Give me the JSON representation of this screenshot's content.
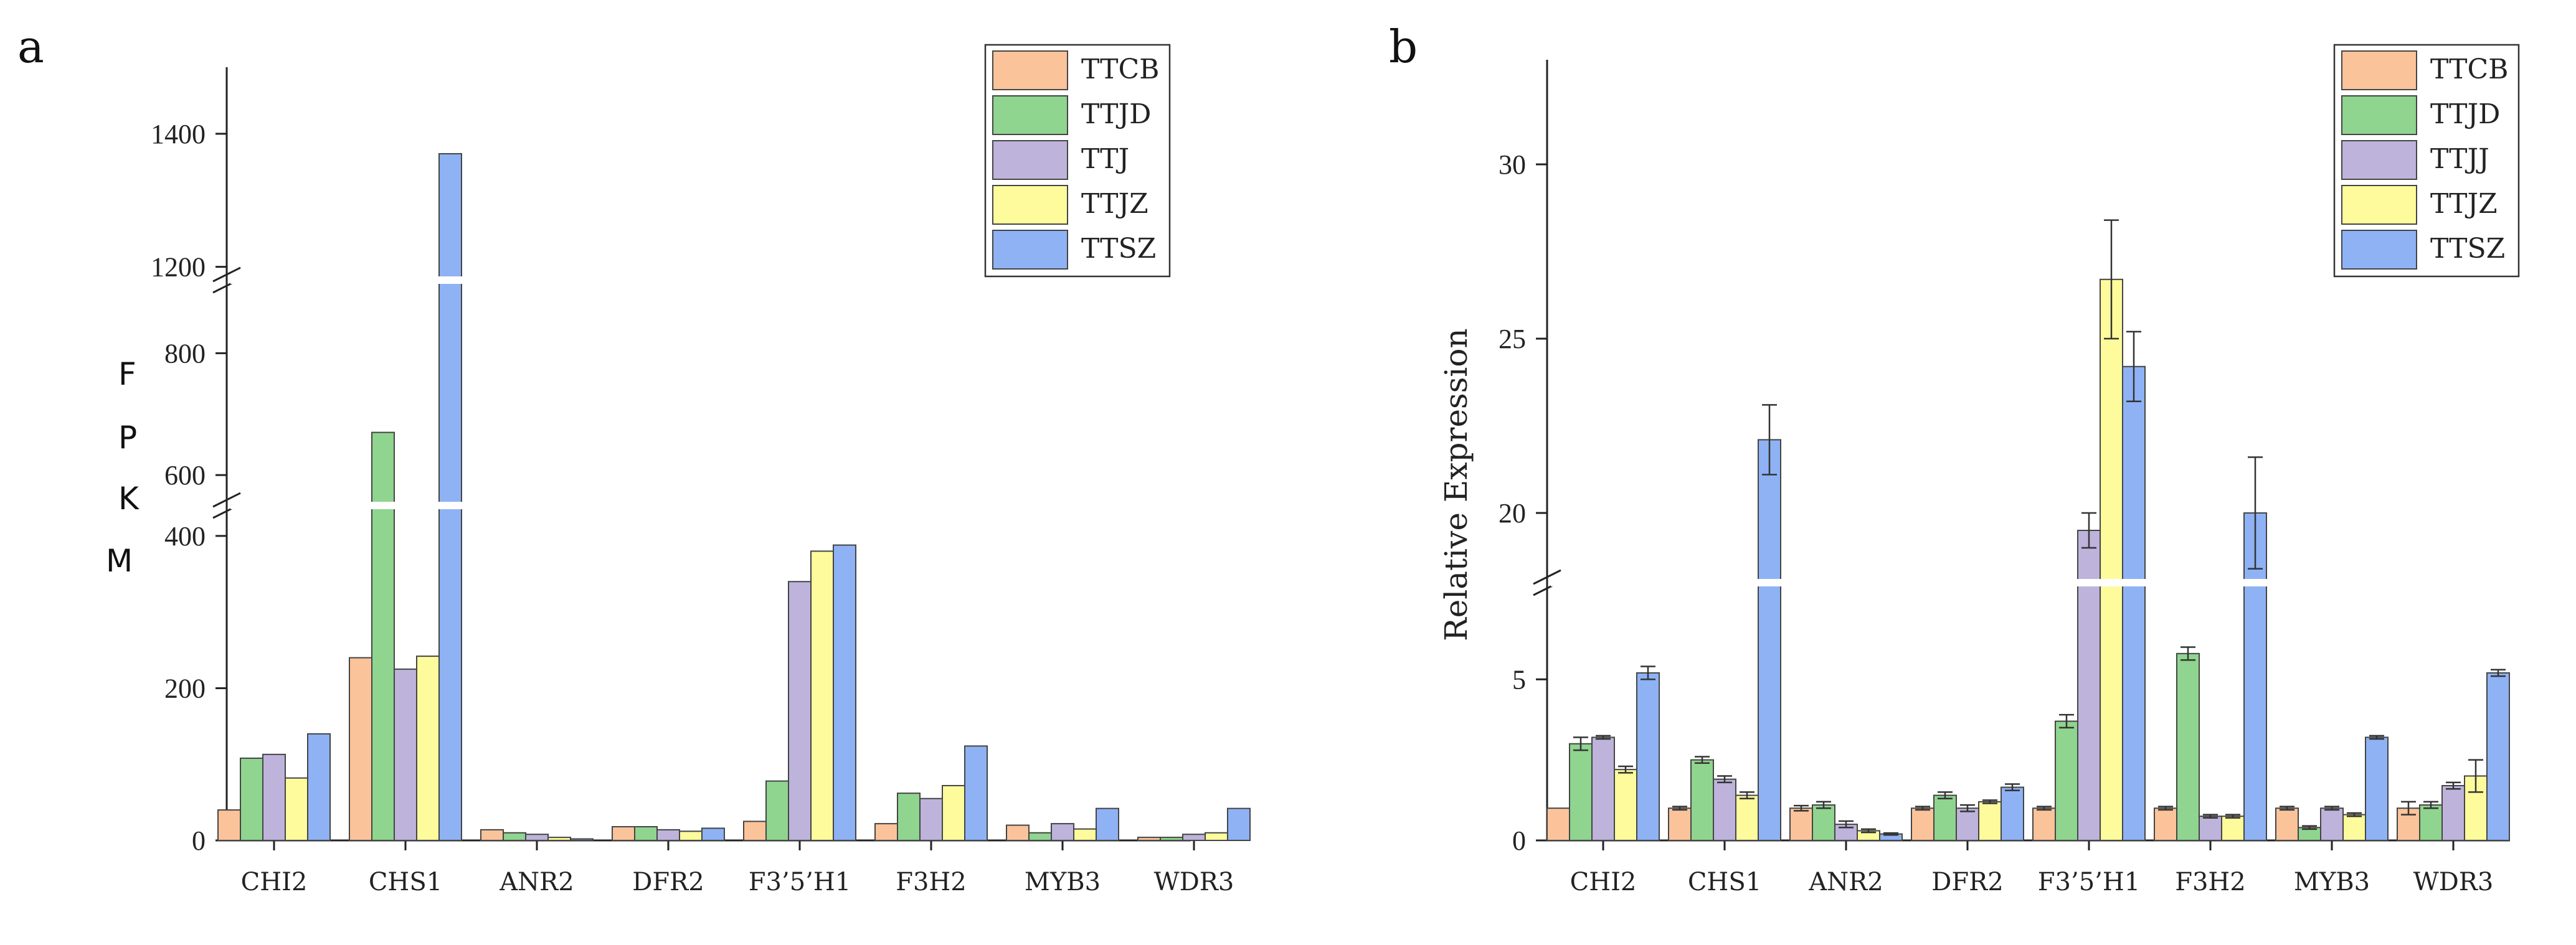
{
  "series_colors": [
    "#FBC39A",
    "#8FD48F",
    "#BDB3DB",
    "#FDFB9C",
    "#8EB2F4"
  ],
  "chart_data": [
    {
      "type": "bar",
      "panel": "a",
      "ylabel": "FPKM",
      "ylabel_letters": [
        "F",
        "P",
        "K",
        "M"
      ],
      "categories": [
        "CHI2",
        "CHS1",
        "ANR2",
        "DFR2",
        "F3’5’H1",
        "F3H2",
        "MYB3",
        "WDR3"
      ],
      "series": [
        {
          "name": "TTCB",
          "values": [
            40,
            240,
            14,
            18,
            25,
            22,
            20,
            4
          ]
        },
        {
          "name": "TTJD",
          "values": [
            108,
            670,
            10,
            18,
            78,
            62,
            10,
            4
          ]
        },
        {
          "name": "TTJ",
          "values": [
            113,
            225,
            8,
            14,
            340,
            55,
            22,
            8
          ]
        },
        {
          "name": "TTJZ",
          "values": [
            82,
            242,
            4,
            12,
            380,
            72,
            15,
            10
          ]
        },
        {
          "name": "TTSZ",
          "values": [
            140,
            1370,
            2,
            16,
            388,
            124,
            42,
            42
          ]
        }
      ],
      "y_segments": [
        [
          0,
          440
        ],
        [
          550,
          920
        ],
        [
          1180,
          1500
        ]
      ],
      "ytick_labels": [
        "0",
        "200",
        "400",
        "600",
        "800",
        "1200",
        "1400"
      ],
      "yticks": [
        0,
        200,
        400,
        600,
        800,
        1200,
        1400
      ],
      "legend_position": "top-right"
    },
    {
      "type": "bar",
      "panel": "b",
      "ylabel": "Relative Expression",
      "categories": [
        "CHI2",
        "CHS1",
        "ANR2",
        "DFR2",
        "F3’5’H1",
        "F3H2",
        "MYB3",
        "WDR3"
      ],
      "series": [
        {
          "name": "TTCB",
          "values": [
            1.0,
            1.0,
            1.0,
            1.0,
            1.0,
            1.0,
            1.0,
            1.0
          ],
          "errors": [
            0,
            0.05,
            0.08,
            0.05,
            0.05,
            0.05,
            0.05,
            0.2
          ]
        },
        {
          "name": "TTJD",
          "values": [
            3.0,
            2.5,
            1.1,
            1.4,
            3.7,
            5.8,
            0.4,
            1.1
          ],
          "errors": [
            0.2,
            0.1,
            0.1,
            0.1,
            0.2,
            0.2,
            0.05,
            0.1
          ]
        },
        {
          "name": "TTJJ",
          "values": [
            3.2,
            1.9,
            0.5,
            1.0,
            19.5,
            0.75,
            1.0,
            1.7
          ],
          "errors": [
            0.05,
            0.1,
            0.1,
            0.1,
            0.5,
            0.05,
            0.05,
            0.1
          ]
        },
        {
          "name": "TTJZ",
          "values": [
            2.2,
            1.4,
            0.3,
            1.2,
            26.7,
            0.75,
            0.8,
            2.0
          ],
          "errors": [
            0.1,
            0.1,
            0.05,
            0.05,
            1.7,
            0.05,
            0.05,
            0.5
          ]
        },
        {
          "name": "TTSZ",
          "values": [
            5.2,
            22.1,
            0.2,
            1.65,
            24.2,
            20.0,
            3.2,
            5.2
          ],
          "errors": [
            0.2,
            1.0,
            0.03,
            0.1,
            1.0,
            1.6,
            0.05,
            0.1
          ]
        }
      ],
      "y_segments": [
        [
          0,
          8
        ],
        [
          18,
          33
        ]
      ],
      "ytick_labels": [
        "0",
        "5",
        "20",
        "25",
        "30"
      ],
      "yticks": [
        0,
        5,
        20,
        25,
        30
      ],
      "legend_position": "top-right"
    }
  ],
  "panels": {
    "a": {
      "label": "a"
    },
    "b": {
      "label": "b"
    }
  }
}
